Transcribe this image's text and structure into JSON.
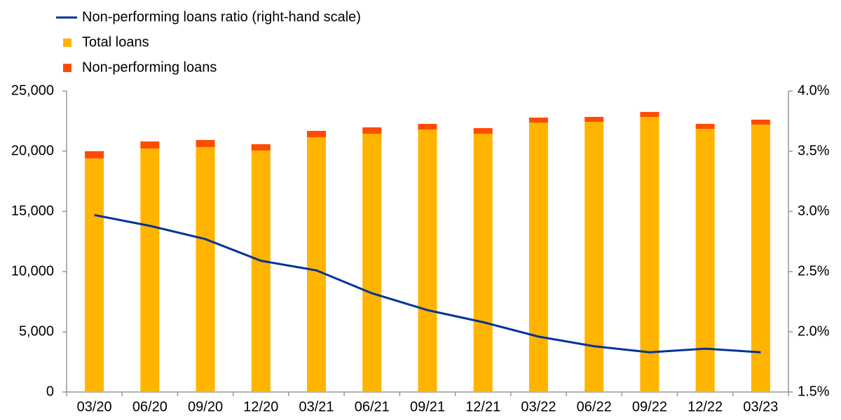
{
  "chart_data": {
    "type": "bar",
    "categories": [
      "03/20",
      "06/20",
      "09/20",
      "12/20",
      "03/21",
      "06/21",
      "09/21",
      "12/21",
      "03/22",
      "06/22",
      "09/22",
      "12/22",
      "03/23"
    ],
    "series": [
      {
        "name": "Non-performing loans ratio (right-hand scale)",
        "type": "line",
        "axis": "y2",
        "color": "#003299",
        "values": [
          2.97,
          2.88,
          2.77,
          2.59,
          2.51,
          2.32,
          2.18,
          2.08,
          1.96,
          1.88,
          1.83,
          1.86,
          1.83
        ]
      },
      {
        "name": "Total loans",
        "type": "bar",
        "color": "#ffb400",
        "values": [
          19400,
          20230,
          20350,
          20060,
          21160,
          21450,
          21800,
          21450,
          22380,
          22440,
          22850,
          21860,
          22210
        ]
      },
      {
        "name": "Non-performing loans",
        "type": "bar",
        "color": "#ff4b00",
        "values": [
          600,
          580,
          580,
          520,
          530,
          530,
          470,
          470,
          410,
          410,
          410,
          410,
          410
        ]
      }
    ],
    "stacked": true,
    "ylim": [
      0,
      25000
    ],
    "yticks": [
      0,
      {
        "value": 5000,
        "label": "5,000"
      },
      {
        "value": 10000,
        "label": "10,000"
      },
      {
        "value": 15000,
        "label": "15,000"
      },
      {
        "value": 20000,
        "label": "20,000"
      },
      {
        "value": 25000,
        "label": "25,000"
      }
    ],
    "y2lim": [
      1.5,
      4.0
    ],
    "y2ticks": [
      {
        "value": 1.5,
        "label": "1.5%"
      },
      {
        "value": 2.0,
        "label": "2.0%"
      },
      {
        "value": 2.5,
        "label": "2.5%"
      },
      {
        "value": 3.0,
        "label": "3.0%"
      },
      {
        "value": 3.5,
        "label": "3.5%"
      },
      {
        "value": 4.0,
        "label": "4.0%"
      }
    ],
    "grid": false
  }
}
